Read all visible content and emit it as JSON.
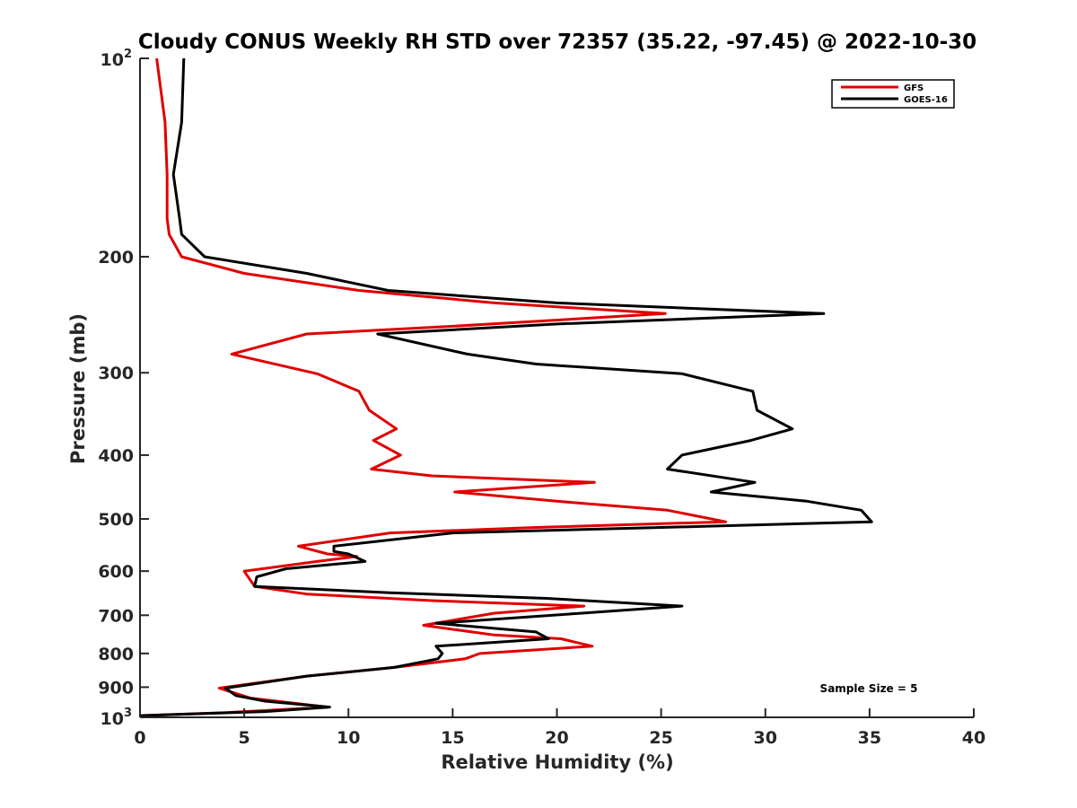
{
  "chart_data": {
    "type": "line",
    "title": "Cloudy CONUS Weekly RH STD over 72357 (35.22, -97.45) @ 2022-10-30",
    "xlabel": "Relative Humidity (%)",
    "ylabel": "Pressure (mb)",
    "xlim": [
      0,
      40
    ],
    "ylim": [
      100,
      1000
    ],
    "y_scale": "log",
    "y_reversed": true,
    "grid": false,
    "legend_position": "top-right",
    "x_ticks": [
      "0",
      "5",
      "10",
      "15",
      "20",
      "25",
      "30",
      "35",
      "40"
    ],
    "y_ticks": [
      {
        "value": 100,
        "base": "10",
        "exp": "2"
      },
      {
        "value": 200,
        "base": "200",
        "exp": ""
      },
      {
        "value": 300,
        "base": "300",
        "exp": ""
      },
      {
        "value": 400,
        "base": "400",
        "exp": ""
      },
      {
        "value": 500,
        "base": "500",
        "exp": ""
      },
      {
        "value": 600,
        "base": "600",
        "exp": ""
      },
      {
        "value": 700,
        "base": "700",
        "exp": ""
      },
      {
        "value": 800,
        "base": "800",
        "exp": ""
      },
      {
        "value": 900,
        "base": "900",
        "exp": ""
      },
      {
        "value": 1000,
        "base": "10",
        "exp": "3"
      }
    ],
    "annotation": "Sample Size = 5",
    "series": [
      {
        "name": "GFS",
        "color": "#e00000",
        "points": [
          [
            0.8,
            100
          ],
          [
            1.2,
            125
          ],
          [
            1.3,
            150
          ],
          [
            1.3,
            175
          ],
          [
            1.4,
            185
          ],
          [
            2.0,
            200
          ],
          [
            5.0,
            212
          ],
          [
            10.5,
            225
          ],
          [
            17.0,
            235
          ],
          [
            25.2,
            244
          ],
          [
            15.0,
            255
          ],
          [
            8.0,
            262
          ],
          [
            4.4,
            281
          ],
          [
            8.5,
            301
          ],
          [
            10.5,
            320
          ],
          [
            11.0,
            342
          ],
          [
            12.3,
            365
          ],
          [
            11.2,
            380
          ],
          [
            12.5,
            400
          ],
          [
            11.1,
            420
          ],
          [
            14.0,
            430
          ],
          [
            21.8,
            440
          ],
          [
            15.1,
            455
          ],
          [
            20.0,
            470
          ],
          [
            25.3,
            485
          ],
          [
            28.1,
            505
          ],
          [
            19.0,
            515
          ],
          [
            12.0,
            525
          ],
          [
            7.6,
            550
          ],
          [
            9.0,
            565
          ],
          [
            10.4,
            570
          ],
          [
            8.5,
            580
          ],
          [
            5.0,
            600
          ],
          [
            5.5,
            633
          ],
          [
            8.0,
            650
          ],
          [
            14.0,
            665
          ],
          [
            21.3,
            678
          ],
          [
            17.0,
            695
          ],
          [
            13.6,
            725
          ],
          [
            17.0,
            750
          ],
          [
            20.2,
            760
          ],
          [
            21.7,
            780
          ],
          [
            16.3,
            800
          ],
          [
            15.6,
            815
          ],
          [
            12.2,
            840
          ],
          [
            8.0,
            866
          ],
          [
            3.8,
            903
          ],
          [
            5.3,
            935
          ],
          [
            9.0,
            965
          ],
          [
            4.0,
            984
          ],
          [
            0.0,
            994
          ]
        ]
      },
      {
        "name": "GOES-16",
        "color": "#000000",
        "points": [
          [
            2.1,
            100
          ],
          [
            2.0,
            125
          ],
          [
            1.6,
            150
          ],
          [
            1.9,
            175
          ],
          [
            2.0,
            185
          ],
          [
            3.1,
            200
          ],
          [
            8.0,
            212
          ],
          [
            11.9,
            225
          ],
          [
            20.0,
            235
          ],
          [
            32.8,
            244
          ],
          [
            20.0,
            253
          ],
          [
            11.4,
            262
          ],
          [
            15.7,
            281
          ],
          [
            19.0,
            291
          ],
          [
            26.0,
            301
          ],
          [
            29.4,
            320
          ],
          [
            29.6,
            342
          ],
          [
            31.3,
            365
          ],
          [
            29.3,
            380
          ],
          [
            26.0,
            400
          ],
          [
            25.3,
            420
          ],
          [
            29.5,
            440
          ],
          [
            27.4,
            455
          ],
          [
            32.0,
            470
          ],
          [
            34.6,
            485
          ],
          [
            35.1,
            505
          ],
          [
            25.0,
            515
          ],
          [
            15.0,
            525
          ],
          [
            9.3,
            550
          ],
          [
            9.3,
            560
          ],
          [
            10.0,
            565
          ],
          [
            10.8,
            580
          ],
          [
            7.0,
            595
          ],
          [
            5.6,
            612
          ],
          [
            5.5,
            633
          ],
          [
            12.0,
            647
          ],
          [
            19.5,
            660
          ],
          [
            26.0,
            678
          ],
          [
            21.2,
            695
          ],
          [
            14.2,
            720
          ],
          [
            19.0,
            742
          ],
          [
            19.6,
            760
          ],
          [
            14.2,
            780
          ],
          [
            14.5,
            800
          ],
          [
            14.3,
            815
          ],
          [
            12.2,
            840
          ],
          [
            8.0,
            866
          ],
          [
            4.1,
            903
          ],
          [
            4.6,
            927
          ],
          [
            6.0,
            945
          ],
          [
            9.1,
            965
          ],
          [
            6.0,
            980
          ],
          [
            0.0,
            994
          ]
        ]
      }
    ]
  }
}
